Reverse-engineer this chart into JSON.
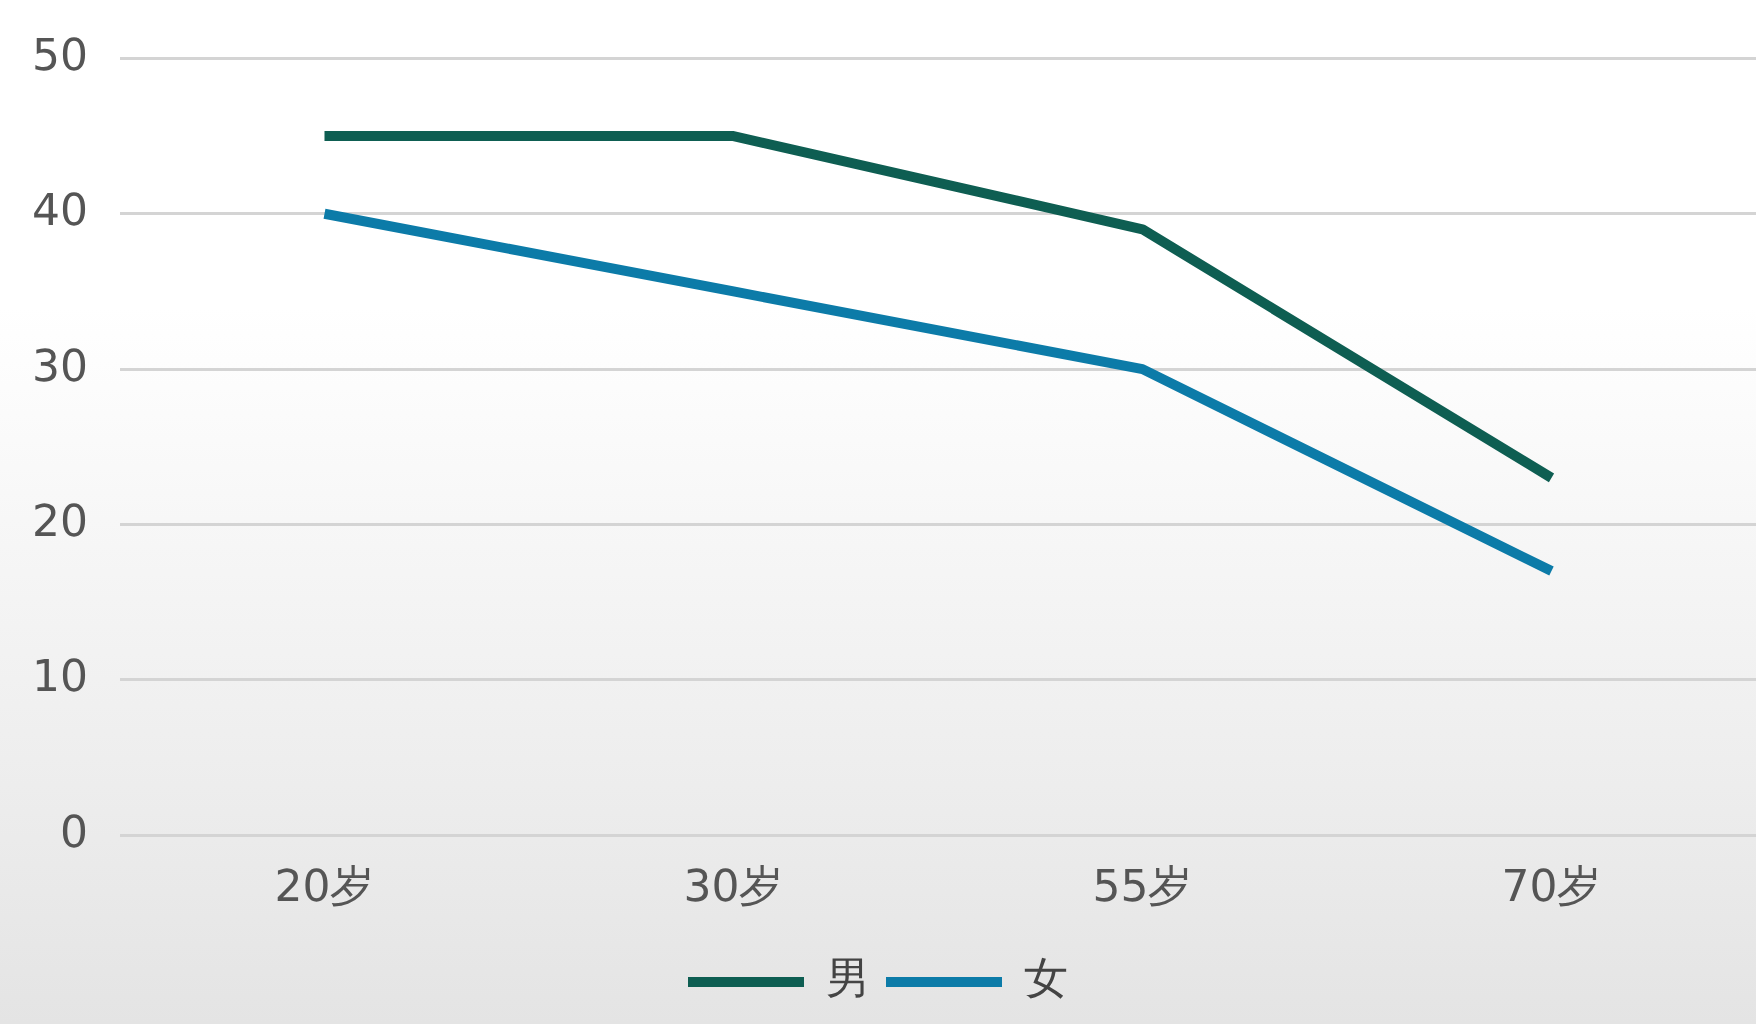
{
  "chart_data": {
    "type": "line",
    "categories": [
      "20岁",
      "30岁",
      "55岁",
      "70岁"
    ],
    "series": [
      {
        "name": "男",
        "color": "#0e5e52",
        "values": [
          45,
          45,
          39,
          23
        ]
      },
      {
        "name": "女",
        "color": "#0c7ba8",
        "values": [
          40,
          35,
          30,
          17
        ]
      }
    ],
    "ylim": [
      0,
      50
    ],
    "yticks": [
      0,
      10,
      20,
      30,
      40,
      50
    ],
    "grid": "y",
    "legend": "bottom",
    "marker": "none",
    "line_style": "solid"
  }
}
